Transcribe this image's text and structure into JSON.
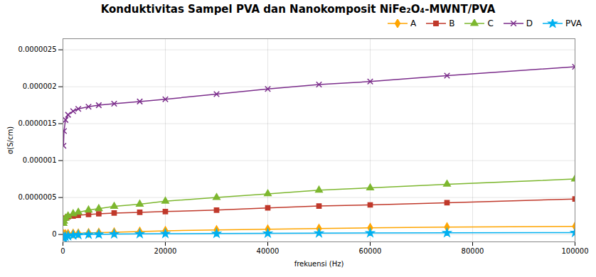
{
  "chart_data": {
    "type": "line",
    "title": "Konduktivitas Sampel PVA dan Nanokomposit NiFe₂O₄-MWNT/PVA",
    "xlabel": "frekuensi (Hz)",
    "ylabel": "σ(S/cm)",
    "x": [
      100,
      200,
      500,
      1000,
      2000,
      3000,
      5000,
      7000,
      10000,
      15000,
      20000,
      30000,
      40000,
      50000,
      60000,
      75000,
      100000
    ],
    "xlim": [
      0,
      100000
    ],
    "xticks": [
      0,
      20000,
      40000,
      60000,
      80000,
      100000
    ],
    "ylim": [
      -1e-07,
      2.65e-06
    ],
    "yticks": [
      0,
      {
        "value": 5e-07,
        "label": "0.0000005"
      },
      {
        "value": 1e-06,
        "label": "0.000001"
      },
      {
        "value": 1.5e-06,
        "label": "0.0000015"
      },
      {
        "value": 2e-06,
        "label": "0.000002"
      },
      {
        "value": 2.5e-06,
        "label": "0.0000025"
      }
    ],
    "grid": true,
    "legend": "upper right",
    "series": [
      {
        "name": "A",
        "color": "#FFA500",
        "marker": "diamond",
        "values": [
          2e-09,
          3e-09,
          5e-09,
          8e-09,
          1.2e-08,
          1.5e-08,
          2e-08,
          2.5e-08,
          3e-08,
          4e-08,
          5e-08,
          6e-08,
          7e-08,
          8e-08,
          9e-08,
          1e-07,
          1.1e-07
        ]
      },
      {
        "name": "B",
        "color": "#C0392B",
        "marker": "square",
        "values": [
          1.8e-07,
          2e-07,
          2.2e-07,
          2.4e-07,
          2.5e-07,
          2.6e-07,
          2.7e-07,
          2.8e-07,
          2.9e-07,
          3e-07,
          3.1e-07,
          3.3e-07,
          3.6e-07,
          3.85e-07,
          4e-07,
          4.3e-07,
          4.8e-07
        ]
      },
      {
        "name": "C",
        "color": "#7DB72F",
        "marker": "triangle",
        "values": [
          1.5e-07,
          1.8e-07,
          2.2e-07,
          2.5e-07,
          2.8e-07,
          3e-07,
          3.3e-07,
          3.5e-07,
          3.8e-07,
          4.1e-07,
          4.5e-07,
          5e-07,
          5.5e-07,
          6e-07,
          6.3e-07,
          6.8e-07,
          7.5e-07
        ]
      },
      {
        "name": "D",
        "color": "#7B2D8B",
        "marker": "x",
        "values": [
          1.2e-06,
          1.4e-06,
          1.55e-06,
          1.62e-06,
          1.67e-06,
          1.7e-06,
          1.73e-06,
          1.75e-06,
          1.77e-06,
          1.8e-06,
          1.83e-06,
          1.9e-06,
          1.97e-06,
          2.03e-06,
          2.07e-06,
          2.15e-06,
          2.27e-06
        ]
      },
      {
        "name": "PVA",
        "color": "#00B0F0",
        "marker": "star",
        "values": [
          -5e-08,
          -4e-08,
          -3e-08,
          -2e-08,
          -1e-08,
          -5e-09,
          0,
          2e-09,
          5e-09,
          8e-09,
          1e-08,
          1.2e-08,
          1.5e-08,
          1.8e-08,
          2e-08,
          2.2e-08,
          2.5e-08
        ]
      }
    ]
  }
}
